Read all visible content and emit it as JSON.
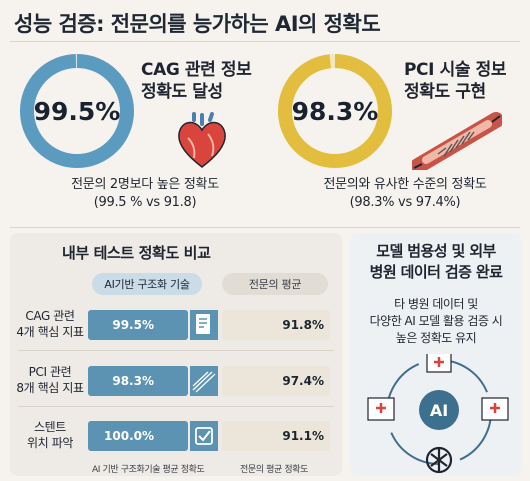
{
  "title": "성능 검증: 전문의를 능가하는 AI의 정확도",
  "cag_card": {
    "value": "99.5%",
    "fill_fraction": 0.995,
    "heading_line1": "CAG 관련 정보",
    "heading_line2": "정확도 달성",
    "caption_line1": "전문의 2명보다 높은 정확도",
    "caption_line2": "(99.5 % vs 91.8)",
    "color": "#5b9bc0",
    "icon": "heart-icon"
  },
  "pci_card": {
    "value": "98.3%",
    "fill_fraction": 0.983,
    "heading_line1": "PCI 시술 정보",
    "heading_line2": "정확도 구현",
    "caption_line1": "전문의와 유사한 수준의 정확도",
    "caption_line2": "(98.3% vs 97.4%)",
    "color": "#e3bd3e",
    "icon": "stent-icon"
  },
  "comparison": {
    "title": "내부 테스트 정확도 비교",
    "col_ai": "AI기반 구조화 기술",
    "col_doc": "전문의 평균",
    "rows": [
      {
        "label_line1": "CAG 관련",
        "label_line2": "4개 핵심 지표",
        "ai": "99.5%",
        "doc": "91.8%",
        "icon": "document-icon"
      },
      {
        "label_line1": "PCI 관련",
        "label_line2": "8개 핵심 지표",
        "ai": "98.3%",
        "doc": "97.4%",
        "icon": "stent-lines-icon"
      },
      {
        "label_line1": "스텐트",
        "label_line2": "위치 파악",
        "ai": "100.0%",
        "doc": "91.1%",
        "icon": "checkbox-icon"
      }
    ],
    "legend_ai": "AI 기반 구조화기술 평균 정확도",
    "legend_doc": "전문의 평균 정확도"
  },
  "generality": {
    "title_line1": "모델 범용성 및 외부",
    "title_line2": "병원 데이터 검증 완료",
    "desc_line1": "타 병원 데이터 및",
    "desc_line2": "다양한  AI  모델 활용 검증 시",
    "desc_line3": "높은 정확도 유지",
    "center_label": "AI"
  }
}
